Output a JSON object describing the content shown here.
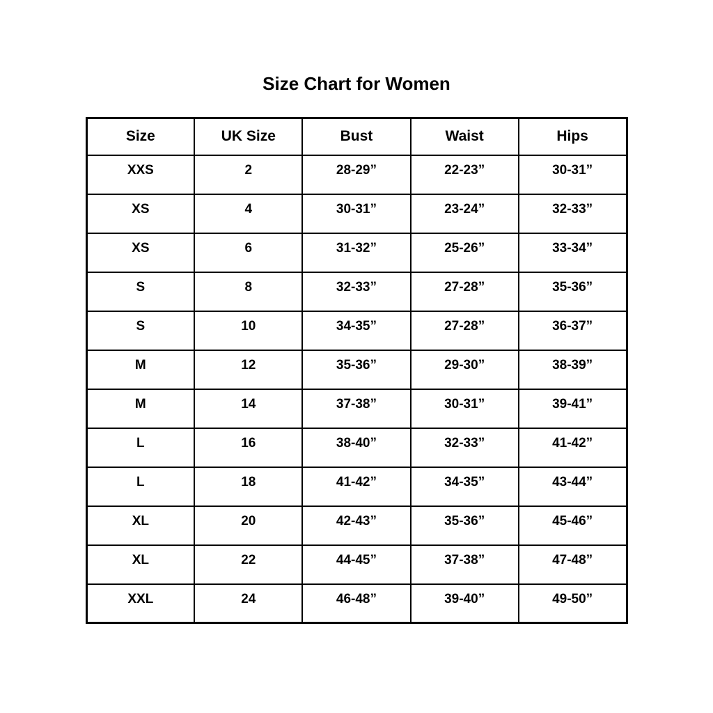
{
  "title": "Size Chart for Women",
  "chart_data": {
    "type": "table",
    "title": "Size Chart for Women",
    "columns": [
      "Size",
      "UK Size",
      "Bust",
      "Waist",
      "Hips"
    ],
    "rows": [
      [
        "XXS",
        "2",
        "28-29”",
        "22-23”",
        "30-31”"
      ],
      [
        "XS",
        "4",
        "30-31”",
        "23-24”",
        "32-33”"
      ],
      [
        "XS",
        "6",
        "31-32”",
        "25-26”",
        "33-34”"
      ],
      [
        "S",
        "8",
        "32-33”",
        "27-28”",
        "35-36”"
      ],
      [
        "S",
        "10",
        "34-35”",
        "27-28”",
        "36-37”"
      ],
      [
        "M",
        "12",
        "35-36”",
        "29-30”",
        "38-39”"
      ],
      [
        "M",
        "14",
        "37-38”",
        "30-31”",
        "39-41”"
      ],
      [
        "L",
        "16",
        "38-40”",
        "32-33”",
        "41-42”"
      ],
      [
        "L",
        "18",
        "41-42”",
        "34-35”",
        "43-44”"
      ],
      [
        "XL",
        "20",
        "42-43”",
        "35-36”",
        "45-46”"
      ],
      [
        "XL",
        "22",
        "44-45”",
        "37-38”",
        "47-48”"
      ],
      [
        "XXL",
        "24",
        "46-48”",
        "39-40”",
        "49-50”"
      ]
    ],
    "text_color": "#000000",
    "background_color": "#ffffff",
    "border_color": "#000000"
  }
}
